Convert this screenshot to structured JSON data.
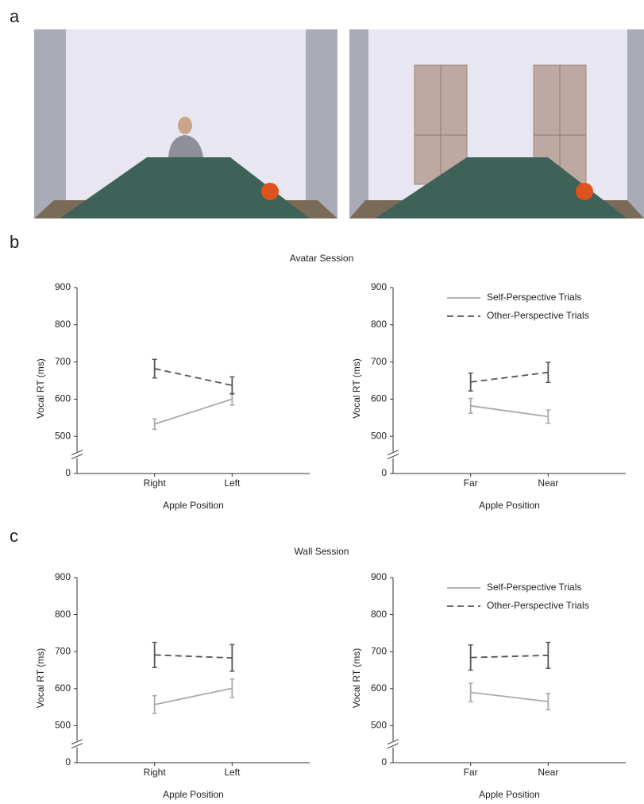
{
  "panel_labels": [
    "a",
    "b",
    "c"
  ],
  "session_titles": [
    "Avatar Session",
    "Wall Session"
  ],
  "chart_data": [
    {
      "type": "line",
      "y_label": "Vocal RT (ms)",
      "x_label": "Apple Position",
      "categories": [
        "Right",
        "Left"
      ],
      "ylim": [
        0,
        900
      ],
      "yticks": [
        0,
        500,
        600,
        700,
        800,
        900
      ],
      "y_break": true,
      "legend": false,
      "series": [
        {
          "color": "#aaaaaa",
          "dash": false,
          "values": [
            533,
            600
          ],
          "errors": [
            14,
            16
          ]
        },
        {
          "color": "#555555",
          "dash": true,
          "values": [
            682,
            637
          ],
          "errors": [
            25,
            23
          ]
        }
      ]
    },
    {
      "type": "line",
      "y_label": "Vocal RT (ms)",
      "x_label": "Apple Position",
      "categories": [
        "Far",
        "Near"
      ],
      "ylim": [
        0,
        900
      ],
      "yticks": [
        0,
        500,
        600,
        700,
        800,
        900
      ],
      "y_break": true,
      "legend": true,
      "series": [
        {
          "name": "Self-Perspective Trials",
          "color": "#aaaaaa",
          "dash": false,
          "values": [
            582,
            553
          ],
          "errors": [
            20,
            18
          ]
        },
        {
          "name": "Other-Perspective Trials",
          "color": "#555555",
          "dash": true,
          "values": [
            646,
            672
          ],
          "errors": [
            24,
            27
          ]
        }
      ]
    },
    {
      "type": "line",
      "y_label": "Vocal RT (ms)",
      "x_label": "Apple Position",
      "categories": [
        "Right",
        "Left"
      ],
      "ylim": [
        0,
        900
      ],
      "yticks": [
        0,
        500,
        600,
        700,
        800,
        900
      ],
      "y_break": true,
      "legend": false,
      "series": [
        {
          "color": "#aaaaaa",
          "dash": false,
          "values": [
            557,
            601
          ],
          "errors": [
            24,
            25
          ]
        },
        {
          "color": "#555555",
          "dash": true,
          "values": [
            691,
            683
          ],
          "errors": [
            34,
            36
          ]
        }
      ]
    },
    {
      "type": "line",
      "y_label": "Vocal RT (ms)",
      "x_label": "Apple Position",
      "categories": [
        "Far",
        "Near"
      ],
      "ylim": [
        0,
        900
      ],
      "yticks": [
        0,
        500,
        600,
        700,
        800,
        900
      ],
      "y_break": true,
      "legend": true,
      "series": [
        {
          "name": "Self-Perspective Trials",
          "color": "#aaaaaa",
          "dash": false,
          "values": [
            590,
            565
          ],
          "errors": [
            25,
            22
          ]
        },
        {
          "name": "Other-Perspective Trials",
          "color": "#555555",
          "dash": true,
          "values": [
            684,
            690
          ],
          "errors": [
            34,
            35
          ]
        }
      ]
    }
  ]
}
